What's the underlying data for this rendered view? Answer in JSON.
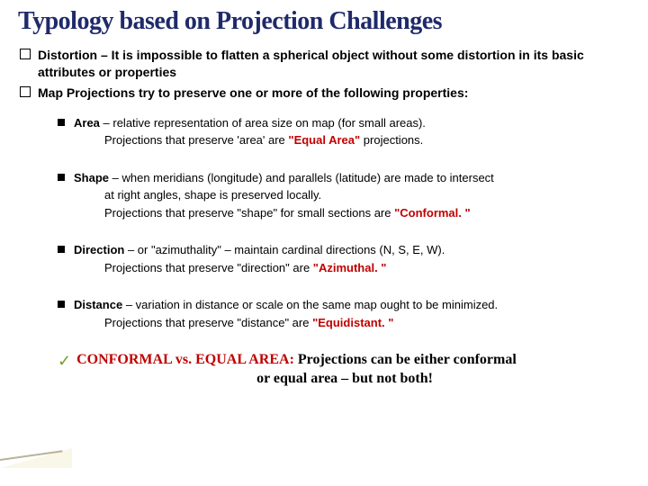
{
  "title": {
    "text": "Typology based on Projection Challenges",
    "fontsize": 28,
    "color": "#1f2a6b"
  },
  "top": {
    "fontsize": 14,
    "items": [
      {
        "label": "Distortion",
        "text": " – It is impossible to flatten a spherical object without some distortion in its basic attributes or properties"
      },
      {
        "label": "",
        "text": "Map Projections try to preserve one or more of the following properties:"
      }
    ]
  },
  "sub": {
    "fontsize": 13,
    "items": [
      {
        "label": "Area",
        "line1": " – relative representation of area size on map (for small areas).",
        "line2a": "Projections that  preserve 'area' are ",
        "red": "\"Equal Area\"",
        "line2b": " projections."
      },
      {
        "label": "Shape",
        "line1": " – when meridians (longitude) and parallels (latitude) are made to intersect",
        "cont": "at right angles, shape is preserved locally.",
        "line2a": "Projections that preserve \"shape\" for small sections are ",
        "red": "\"Conformal. \"",
        "line2b": ""
      },
      {
        "label": "Direction",
        "line1": " – or \"azimuthality\" – maintain cardinal directions (N, S, E, W).",
        "line2a": "Projections that preserve \"direction\" are ",
        "red": "\"Azimuthal. \"",
        "line2b": ""
      },
      {
        "label": "Distance",
        "line1": " – variation in distance or scale on the same map ought to be minimized.",
        "line2a": "Projections that preserve \"distance\" are ",
        "red": "\"Equidistant. \"",
        "line2b": ""
      }
    ]
  },
  "footer": {
    "fontsize": 16,
    "leadRed": "CONFORMAL vs. EQUAL AREA:",
    "rest1": "  Projections can be either conformal",
    "rest2": "or  equal area – but not both!"
  },
  "colors": {
    "red": "#c00000",
    "title": "#1f2a6b",
    "check": "#7aa02a",
    "bg": "#ffffff"
  }
}
